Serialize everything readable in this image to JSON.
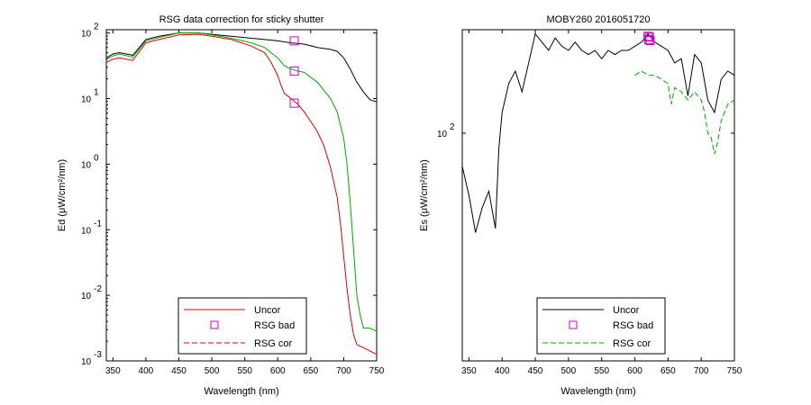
{
  "charts": [
    {
      "title": "RSG data correction for sticky shutter",
      "xlabel": "Wavelength (nm)",
      "ylabel": "Ed (μW/cm²/nm)",
      "legend": [
        "Uncor",
        "RSG bad",
        "RSG cor"
      ]
    },
    {
      "title": "MOBY260  2016051720",
      "xlabel": "Wavelength (nm)",
      "ylabel": "Es (μW/cm²/nm)",
      "legend": [
        "Uncor",
        "RSG bad",
        "RSG cor"
      ]
    }
  ],
  "colors": {
    "red": "#e00000",
    "green": "#00aa00",
    "black": "#000000",
    "magenta": "#cc00cc"
  },
  "chart_data": [
    {
      "type": "line",
      "title": "RSG data correction for sticky shutter",
      "xlabel": "Wavelength (nm)",
      "ylabel": "Ed (μW/cm²/nm)",
      "xlim": [
        340,
        750
      ],
      "ylim_log10": [
        -3,
        2.05
      ],
      "y_scale": "log",
      "xticks": [
        350,
        400,
        450,
        500,
        550,
        600,
        650,
        700,
        750
      ],
      "yticks": [
        {
          "base": "10",
          "exp": "-3",
          "value": -3
        },
        {
          "base": "10",
          "exp": "-2",
          "value": -2
        },
        {
          "base": "10",
          "exp": "-1",
          "value": -1
        },
        {
          "base": "10",
          "exp": "0",
          "value": 0
        },
        {
          "base": "10",
          "exp": "1",
          "value": 1
        },
        {
          "base": "10",
          "exp": "2",
          "value": 2
        }
      ],
      "legend_position": "bottom-center",
      "series": [
        {
          "label": "Uncor",
          "style": "solid",
          "color": "#000000",
          "x": [
            340,
            350,
            360,
            380,
            400,
            420,
            450,
            480,
            500,
            530,
            560,
            580,
            600,
            620,
            640,
            660,
            680,
            690,
            700,
            710,
            720,
            730,
            740,
            750
          ],
          "y": [
            1.62,
            1.68,
            1.7,
            1.66,
            1.9,
            1.95,
            2.0,
            2.0,
            1.98,
            1.95,
            1.92,
            1.9,
            1.88,
            1.85,
            1.83,
            1.78,
            1.75,
            1.72,
            1.62,
            1.45,
            1.25,
            1.1,
            0.98,
            0.95
          ]
        },
        {
          "label": "Uncor",
          "style": "solid",
          "color": "#00aa00",
          "x": [
            340,
            350,
            360,
            380,
            400,
            420,
            450,
            480,
            500,
            530,
            560,
            580,
            600,
            610,
            620,
            630,
            640,
            660,
            680,
            690,
            700,
            705,
            710,
            715,
            720,
            725,
            730,
            740,
            750
          ],
          "y": [
            1.6,
            1.65,
            1.68,
            1.63,
            1.88,
            1.93,
            2.0,
            2.0,
            1.97,
            1.92,
            1.85,
            1.78,
            1.62,
            1.5,
            1.45,
            1.42,
            1.4,
            1.25,
            1.0,
            0.8,
            0.4,
            0.0,
            -0.6,
            -1.3,
            -2.0,
            -2.3,
            -2.5,
            -2.5,
            -2.55
          ]
        },
        {
          "label": "Uncor",
          "style": "solid",
          "color": "#e00000",
          "x": [
            340,
            350,
            360,
            380,
            400,
            420,
            450,
            480,
            500,
            530,
            560,
            580,
            590,
            600,
            605,
            610,
            620,
            630,
            640,
            650,
            660,
            670,
            680,
            690,
            695,
            700,
            705,
            710,
            715,
            720,
            730,
            740,
            750
          ],
          "y": [
            1.55,
            1.6,
            1.62,
            1.58,
            1.85,
            1.9,
            1.97,
            1.98,
            1.95,
            1.9,
            1.8,
            1.7,
            1.55,
            1.35,
            1.2,
            1.08,
            1.0,
            0.92,
            0.8,
            0.65,
            0.5,
            0.28,
            -0.05,
            -0.5,
            -0.9,
            -1.4,
            -1.9,
            -2.3,
            -2.6,
            -2.75,
            -2.8,
            -2.85,
            -2.9
          ]
        }
      ],
      "rsg_bad": [
        {
          "x": 625,
          "y": 1.88
        },
        {
          "x": 625,
          "y": 1.42
        },
        {
          "x": 625,
          "y": 0.93
        }
      ]
    },
    {
      "type": "line",
      "title": "MOBY260  2016051720",
      "xlabel": "Wavelength (nm)",
      "ylabel": "Es (μW/cm²/nm)",
      "xlim": [
        340,
        750
      ],
      "ylim_log10": [
        1.45,
        2.25
      ],
      "y_scale": "log",
      "xticks": [
        350,
        400,
        450,
        500,
        550,
        600,
        650,
        700,
        750
      ],
      "yticks": [
        {
          "base": "10",
          "exp": "2",
          "value": 2
        }
      ],
      "legend_position": "bottom-center",
      "series": [
        {
          "label": "Uncor",
          "style": "solid",
          "color": "#000000",
          "x": [
            340,
            350,
            360,
            370,
            380,
            390,
            395,
            400,
            410,
            420,
            430,
            440,
            450,
            460,
            470,
            480,
            490,
            500,
            510,
            520,
            530,
            540,
            550,
            560,
            570,
            580,
            590,
            600,
            610,
            620,
            630,
            640,
            650,
            660,
            670,
            680,
            690,
            700,
            710,
            720,
            730,
            740,
            750
          ],
          "y": [
            1.92,
            1.85,
            1.76,
            1.82,
            1.86,
            1.77,
            1.96,
            2.05,
            2.12,
            2.15,
            2.1,
            2.17,
            2.24,
            2.22,
            2.2,
            2.23,
            2.21,
            2.2,
            2.22,
            2.2,
            2.19,
            2.2,
            2.18,
            2.2,
            2.19,
            2.2,
            2.2,
            2.21,
            2.22,
            2.24,
            2.22,
            2.21,
            2.2,
            2.17,
            2.18,
            2.09,
            2.19,
            2.17,
            2.08,
            2.05,
            2.13,
            2.15,
            2.14
          ]
        },
        {
          "label": "RSG cor",
          "style": "dashed",
          "color": "#00aa00",
          "x": [
            600,
            610,
            620,
            630,
            640,
            650,
            655,
            660,
            670,
            680,
            690,
            700,
            705,
            710,
            715,
            720,
            725,
            730,
            740,
            750
          ],
          "y": [
            2.14,
            2.15,
            2.14,
            2.14,
            2.13,
            2.12,
            2.07,
            2.11,
            2.1,
            2.08,
            2.1,
            2.08,
            2.05,
            2.0,
            1.99,
            1.95,
            1.98,
            2.03,
            2.07,
            2.08
          ]
        }
      ],
      "rsg_bad": [
        {
          "x": 620,
          "y": 2.234
        },
        {
          "x": 621,
          "y": 2.226
        },
        {
          "x": 622,
          "y": 2.232
        },
        {
          "x": 623,
          "y": 2.224
        }
      ]
    }
  ]
}
